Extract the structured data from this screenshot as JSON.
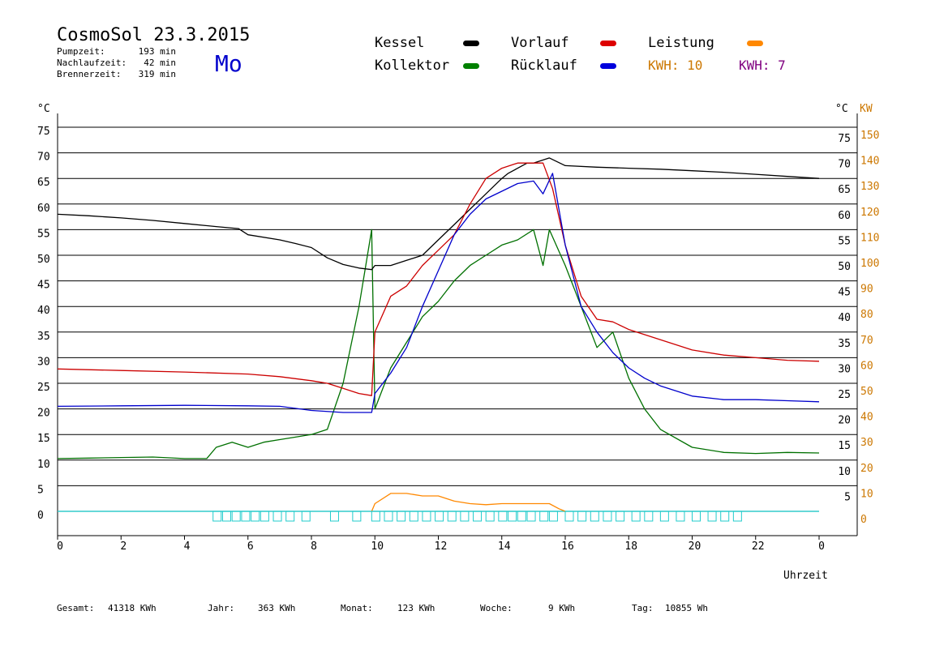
{
  "header": {
    "title": "CosmoSol 23.3.2015",
    "day": "Mo",
    "stats": [
      {
        "label": "Pumpzeit:",
        "value": "193 min"
      },
      {
        "label": "Nachlaufzeit:",
        "value": "42 min"
      },
      {
        "label": "Brennerzeit:",
        "value": "319 min"
      }
    ]
  },
  "legend": {
    "items": [
      {
        "label": "Kessel",
        "color": "#000000"
      },
      {
        "label": "Vorlauf",
        "color": "#dd0000"
      },
      {
        "label": "Leistung",
        "color": "#ff8800"
      },
      {
        "label": "Kollektor",
        "color": "#008000"
      },
      {
        "label": "Rücklauf",
        "color": "#0000dd"
      }
    ],
    "kwh": [
      {
        "text": "KWH: 10",
        "color": "#cc7700"
      },
      {
        "text": "KWH: 7",
        "color": "#800080"
      }
    ]
  },
  "axes": {
    "left_unit": "°C",
    "right_unit": "°C",
    "right_unit2": "KW",
    "xlabel": "Uhrzeit"
  },
  "footer": [
    {
      "label": "Gesamt:",
      "value": "41318 KWh"
    },
    {
      "label": "Jahr:",
      "value": "363 KWh"
    },
    {
      "label": "Monat:",
      "value": "123 KWh"
    },
    {
      "label": "Woche:",
      "value": "9 KWh"
    },
    {
      "label": "Tag:",
      "value": "10855 Wh"
    }
  ],
  "chart_data": {
    "type": "line",
    "xlim": [
      0,
      24
    ],
    "ylim": [
      0,
      75
    ],
    "y2lim": [
      0,
      150
    ],
    "x_ticks": [
      "0",
      "2",
      "4",
      "6",
      "8",
      "10",
      "12",
      "14",
      "16",
      "18",
      "20",
      "22",
      "0"
    ],
    "y_ticks": [
      0,
      5,
      10,
      15,
      20,
      25,
      30,
      35,
      40,
      45,
      50,
      55,
      60,
      65,
      70,
      75
    ],
    "y2_ticks": [
      "",
      "10",
      "20",
      "30",
      "40",
      "50",
      "60",
      "70",
      "80",
      "90",
      "100",
      "110",
      "120",
      "130",
      "140",
      "150"
    ],
    "grid": true,
    "series": [
      {
        "name": "Kessel",
        "color": "#000000",
        "x": [
          0,
          1,
          2,
          3,
          4,
          5,
          5.7,
          6,
          7,
          7.5,
          8,
          8.5,
          9,
          9.5,
          9.9,
          10,
          10.5,
          11,
          11.5,
          12,
          12.5,
          13,
          13.5,
          14,
          14.2,
          14.5,
          14.8,
          15,
          15.5,
          16,
          17,
          18,
          19,
          20,
          21,
          22,
          23,
          24
        ],
        "y": [
          58,
          57.7,
          57.3,
          56.8,
          56.2,
          55.6,
          55.2,
          54,
          53,
          52.3,
          51.5,
          49.5,
          48.2,
          47.5,
          47.2,
          48,
          48,
          49,
          50,
          53,
          56,
          59,
          62,
          65,
          66,
          67,
          68,
          68,
          69,
          67.5,
          67.2,
          67,
          66.8,
          66.5,
          66.2,
          65.8,
          65.4,
          65
        ]
      },
      {
        "name": "Vorlauf",
        "color": "#cc0000",
        "x": [
          0,
          2,
          4,
          6,
          7,
          8,
          8.5,
          9,
          9.5,
          9.9,
          10,
          10.5,
          11,
          11.5,
          12,
          12.5,
          13,
          13.5,
          14,
          14.5,
          15,
          15.3,
          15.6,
          16,
          16.5,
          17,
          17.5,
          18,
          19,
          20,
          21,
          22,
          23,
          24
        ],
        "y": [
          27.8,
          27.5,
          27.2,
          26.8,
          26.3,
          25.5,
          25,
          24,
          23,
          22.6,
          35,
          42,
          44,
          48,
          51,
          54,
          60,
          65,
          67,
          68,
          68,
          68,
          63,
          52,
          42,
          37.5,
          37,
          35.5,
          33.5,
          31.5,
          30.5,
          30,
          29.5,
          29.3
        ]
      },
      {
        "name": "Rücklauf",
        "color": "#0000cc",
        "x": [
          0,
          2,
          4,
          6,
          7,
          8,
          9,
          9.9,
          10,
          10.5,
          11,
          11.5,
          12,
          12.5,
          13,
          13.5,
          14,
          14.5,
          15,
          15.3,
          15.6,
          16,
          16.5,
          17,
          17.5,
          18,
          18.5,
          19,
          19.5,
          20,
          21,
          22,
          23,
          24
        ],
        "y": [
          20.5,
          20.6,
          20.7,
          20.6,
          20.5,
          19.7,
          19.3,
          19.3,
          23,
          27,
          32,
          40,
          47,
          54,
          58,
          61,
          62.5,
          64,
          64.5,
          62,
          66,
          52,
          40,
          35,
          31,
          28,
          26,
          24.5,
          23.5,
          22.5,
          21.8,
          21.8,
          21.6,
          21.4
        ]
      },
      {
        "name": "Kollektor",
        "color": "#007000",
        "x": [
          0,
          1,
          2,
          3,
          4,
          4.7,
          5,
          5.5,
          6,
          6.5,
          7,
          7.5,
          8,
          8.5,
          9,
          9.5,
          9.9,
          10,
          10.5,
          11,
          11.5,
          12,
          12.5,
          13,
          13.5,
          14,
          14.5,
          15,
          15.3,
          15.5,
          16,
          16.5,
          17,
          17.5,
          18,
          18.5,
          19,
          20,
          21,
          22,
          23,
          24
        ],
        "y": [
          10.3,
          10.4,
          10.5,
          10.6,
          10.3,
          10.3,
          12.5,
          13.5,
          12.5,
          13.5,
          14,
          14.5,
          15,
          16,
          25,
          40,
          55,
          20,
          28,
          33,
          38,
          41,
          45,
          48,
          50,
          52,
          53,
          55,
          48,
          55,
          48,
          40,
          32,
          35,
          26,
          20,
          16,
          12.5,
          11.5,
          11.3,
          11.5,
          11.4
        ]
      },
      {
        "name": "Leistung",
        "color": "#ff8800",
        "x": [
          9.9,
          10,
          10.5,
          11,
          11.5,
          12,
          12.5,
          13,
          13.5,
          14,
          14.5,
          15,
          15.5,
          15.8,
          16
        ],
        "y": [
          0,
          1.5,
          3.5,
          3.5,
          3,
          3,
          2,
          1.5,
          1.3,
          1.5,
          1.5,
          1.5,
          1.5,
          0.5,
          0
        ]
      }
    ]
  }
}
